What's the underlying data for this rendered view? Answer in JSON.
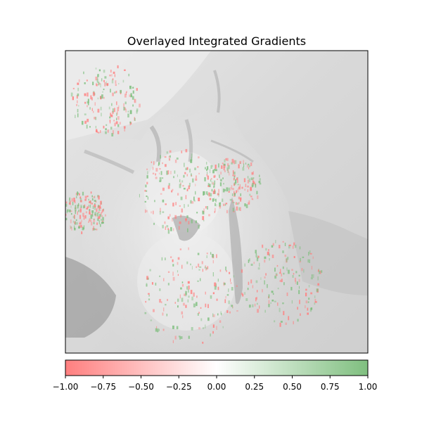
{
  "chart_data": {
    "type": "heatmap",
    "title": "Overlayed Integrated Gradients",
    "xlabel": "",
    "ylabel": "",
    "colorbar": {
      "orientation": "horizontal",
      "placement": "bottom",
      "range": [
        -1.0,
        1.0
      ],
      "colors": {
        "low": "#ff7f7f",
        "mid": "#ffffff",
        "high": "#7fbf7f"
      },
      "ticks": [
        -1.0,
        -0.75,
        -0.5,
        -0.25,
        0.0,
        0.25,
        0.5,
        0.75,
        1.0
      ],
      "tick_labels": [
        "−1.00",
        "−0.75",
        "−0.50",
        "−0.25",
        "0.00",
        "0.25",
        "0.50",
        "0.75",
        "1.00"
      ]
    },
    "axes_ticks": "none",
    "background_image": "grayscale cat photo"
  }
}
